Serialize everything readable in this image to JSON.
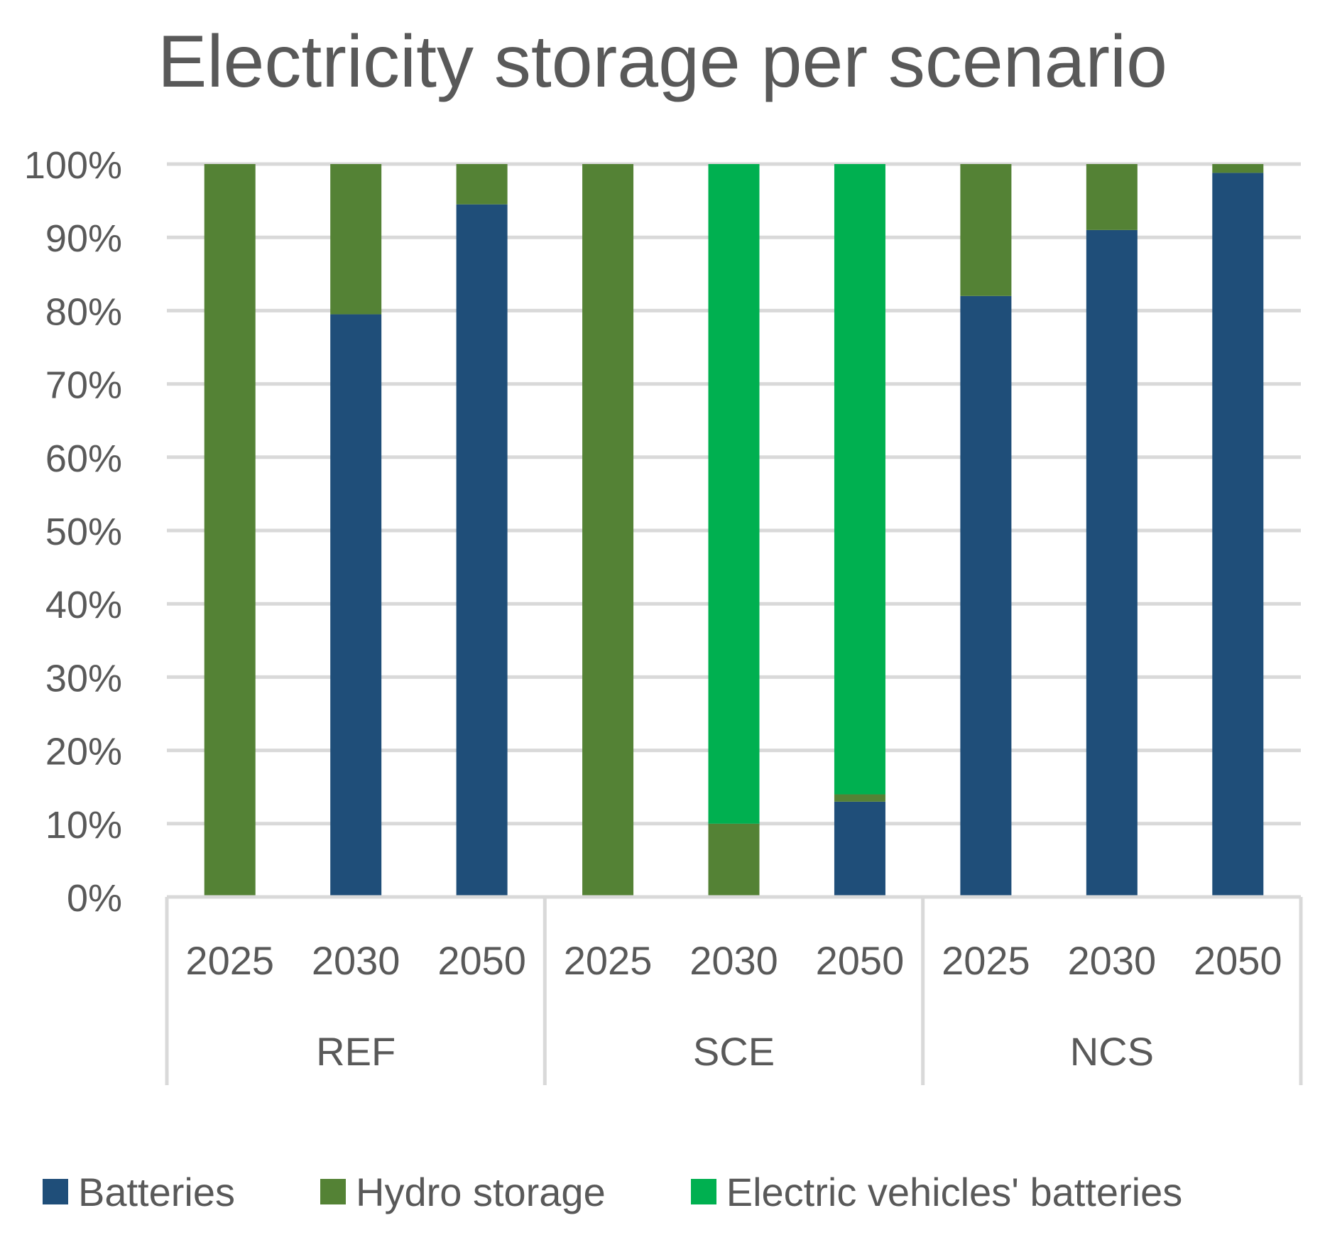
{
  "chart_data": {
    "type": "bar",
    "stacked": true,
    "percent": true,
    "title": "Electricity storage per scenario",
    "xlabel": "",
    "ylabel": "",
    "ylim": [
      0,
      100
    ],
    "yticks": [
      "0%",
      "10%",
      "20%",
      "30%",
      "40%",
      "50%",
      "60%",
      "70%",
      "80%",
      "90%",
      "100%"
    ],
    "groups": [
      {
        "name": "REF",
        "categories": [
          "2025",
          "2030",
          "2050"
        ]
      },
      {
        "name": "SCE",
        "categories": [
          "2025",
          "2030",
          "2050"
        ]
      },
      {
        "name": "NCS",
        "categories": [
          "2025",
          "2030",
          "2050"
        ]
      }
    ],
    "series": [
      {
        "name": "Batteries",
        "color": "#1f4e79",
        "values": [
          0,
          79.5,
          94.5,
          0,
          0,
          13,
          82,
          91,
          98.8
        ]
      },
      {
        "name": "Hydro storage",
        "color": "#548235",
        "values": [
          100,
          20.5,
          5.5,
          100,
          10,
          1,
          18,
          9,
          1.2
        ]
      },
      {
        "name": "Electric vehicles' batteries",
        "color": "#00b050",
        "values": [
          0,
          0,
          0,
          0,
          90,
          86,
          0,
          0,
          0
        ]
      }
    ],
    "grid": true,
    "legend_position": "bottom"
  }
}
